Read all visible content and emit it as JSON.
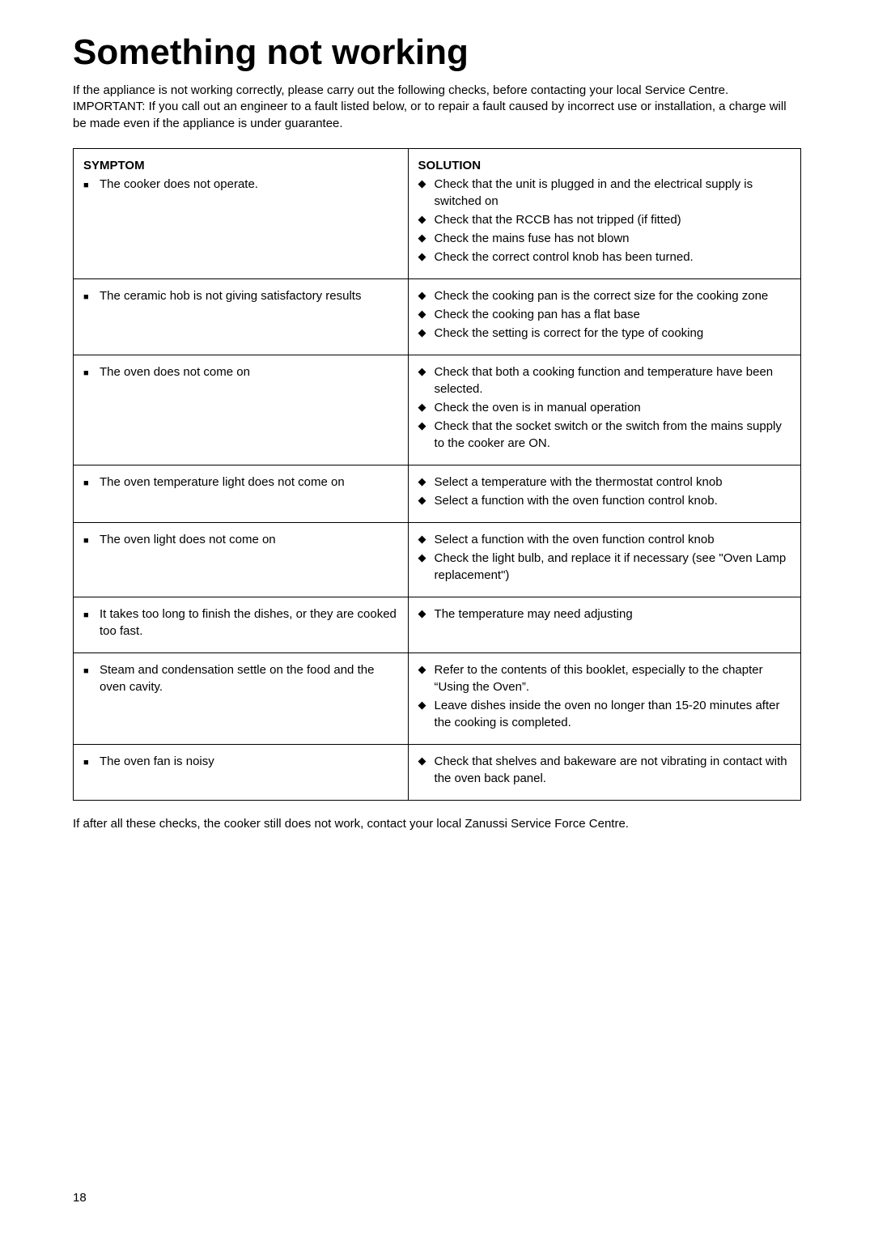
{
  "title": "Something not working",
  "intro_lines": [
    "If the appliance is not working correctly, please carry out the following checks, before contacting your local Service Centre.",
    "IMPORTANT: If you call out an engineer to a fault listed below, or to repair a fault caused by incorrect use or installation, a charge will be made even if the appliance is under guarantee."
  ],
  "symptom_header": "SYMPTOM",
  "solution_header": "SOLUTION",
  "rows": [
    {
      "symptom": "The cooker does not operate.",
      "solutions": [
        "Check that the unit is plugged in and the electrical supply is switched on",
        "Check that the RCCB has not tripped (if fitted)",
        "Check the mains fuse has not blown",
        "Check the correct control knob has been turned."
      ]
    },
    {
      "symptom": "The ceramic hob is not giving satisfactory results",
      "solutions": [
        "Check the cooking pan is the correct size for the cooking zone",
        "Check the cooking pan has a flat base",
        "Check the setting is correct for the type of cooking"
      ]
    },
    {
      "symptom": "The oven does not come on",
      "solutions": [
        "Check that both a cooking function and temperature have been selected.",
        "Check the oven is in manual operation",
        "Check that the socket switch or the switch from the mains supply to the cooker are ON."
      ]
    },
    {
      "symptom": "The oven temperature light does not come on",
      "solutions": [
        "Select a temperature with the thermostat control knob",
        "Select a function with the oven function control knob."
      ]
    },
    {
      "symptom": "The oven light does not come on",
      "solutions": [
        "Select a function with the oven function control knob",
        "Check the light bulb, and replace it if necessary (see \"Oven Lamp replacement\")"
      ]
    },
    {
      "symptom": "It takes too long to finish the dishes, or they are cooked too fast.",
      "solutions": [
        "The temperature may need adjusting"
      ]
    },
    {
      "symptom": "Steam and condensation settle on the food and the oven cavity.",
      "solutions": [
        "Refer to the contents of this booklet, especially to the chapter “Using the Oven”.",
        "Leave dishes inside the oven no longer than 15-20 minutes after the cooking is completed."
      ]
    },
    {
      "symptom": "The oven fan is noisy",
      "solutions": [
        "Check that shelves and bakeware are not vibrating in contact with the oven back panel."
      ]
    }
  ],
  "footer": "If after all these checks, the cooker still does not work, contact your local Zanussi Service Force Centre.",
  "page_number": "18"
}
